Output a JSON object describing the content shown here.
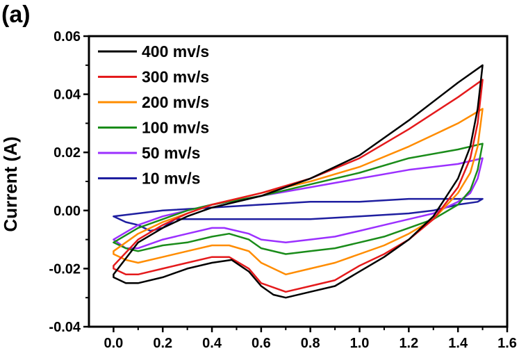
{
  "chart_data": {
    "type": "line",
    "panel_label": "(a)",
    "title": "",
    "xlabel": "",
    "ylabel": "Current (A)",
    "xlim": [
      -0.1,
      1.6
    ],
    "ylim": [
      -0.04,
      0.06
    ],
    "x_ticks": [
      0.0,
      0.2,
      0.4,
      0.6,
      0.8,
      1.0,
      1.2,
      1.4,
      1.6
    ],
    "x_tick_labels": [
      "0.0",
      "0.2",
      "0.4",
      "0.6",
      "0.8",
      "1.0",
      "1.2",
      "1.4",
      "1.6"
    ],
    "y_ticks": [
      -0.04,
      -0.02,
      0.0,
      0.02,
      0.04,
      0.06
    ],
    "y_tick_labels": [
      "-0.04",
      "-0.02",
      "0.00",
      "0.02",
      "0.04",
      "0.06"
    ],
    "grid": false,
    "legend_position": "top-left",
    "series": [
      {
        "name": "400 mv/s",
        "color": "#000000",
        "points": [
          [
            0,
            -0.022
          ],
          [
            0.1,
            -0.011
          ],
          [
            0.2,
            -0.006
          ],
          [
            0.3,
            -0.002
          ],
          [
            0.4,
            0.001
          ],
          [
            0.6,
            0.005
          ],
          [
            0.8,
            0.011
          ],
          [
            1.0,
            0.019
          ],
          [
            1.2,
            0.031
          ],
          [
            1.4,
            0.044
          ],
          [
            1.5,
            0.05
          ],
          [
            1.48,
            0.035
          ],
          [
            1.45,
            0.022
          ],
          [
            1.4,
            0.011
          ],
          [
            1.3,
            -0.002
          ],
          [
            1.2,
            -0.01
          ],
          [
            1.1,
            -0.016
          ],
          [
            1.0,
            -0.021
          ],
          [
            0.9,
            -0.026
          ],
          [
            0.8,
            -0.028
          ],
          [
            0.7,
            -0.03
          ],
          [
            0.65,
            -0.029
          ],
          [
            0.6,
            -0.026
          ],
          [
            0.55,
            -0.021
          ],
          [
            0.48,
            -0.017
          ],
          [
            0.4,
            -0.018
          ],
          [
            0.3,
            -0.02
          ],
          [
            0.2,
            -0.023
          ],
          [
            0.1,
            -0.025
          ],
          [
            0.05,
            -0.025
          ],
          [
            0,
            -0.023
          ]
        ]
      },
      {
        "name": "300 mv/s",
        "color": "#e41a1c",
        "points": [
          [
            0,
            -0.019
          ],
          [
            0.1,
            -0.01
          ],
          [
            0.2,
            -0.005
          ],
          [
            0.3,
            -0.001
          ],
          [
            0.4,
            0.002
          ],
          [
            0.6,
            0.006
          ],
          [
            0.8,
            0.011
          ],
          [
            1.0,
            0.018
          ],
          [
            1.2,
            0.028
          ],
          [
            1.4,
            0.039
          ],
          [
            1.5,
            0.045
          ],
          [
            1.48,
            0.03
          ],
          [
            1.45,
            0.018
          ],
          [
            1.4,
            0.008
          ],
          [
            1.3,
            -0.003
          ],
          [
            1.2,
            -0.01
          ],
          [
            1.1,
            -0.015
          ],
          [
            1.0,
            -0.019
          ],
          [
            0.9,
            -0.024
          ],
          [
            0.8,
            -0.026
          ],
          [
            0.7,
            -0.028
          ],
          [
            0.6,
            -0.025
          ],
          [
            0.55,
            -0.02
          ],
          [
            0.47,
            -0.016
          ],
          [
            0.4,
            -0.016
          ],
          [
            0.3,
            -0.018
          ],
          [
            0.2,
            -0.02
          ],
          [
            0.1,
            -0.022
          ],
          [
            0.05,
            -0.022
          ],
          [
            0,
            -0.02
          ]
        ]
      },
      {
        "name": "200 mv/s",
        "color": "#ff8c00",
        "points": [
          [
            0,
            -0.014
          ],
          [
            0.1,
            -0.008
          ],
          [
            0.2,
            -0.004
          ],
          [
            0.3,
            -0.001
          ],
          [
            0.4,
            0.002
          ],
          [
            0.6,
            0.006
          ],
          [
            0.8,
            0.01
          ],
          [
            1.0,
            0.015
          ],
          [
            1.2,
            0.022
          ],
          [
            1.4,
            0.03
          ],
          [
            1.5,
            0.035
          ],
          [
            1.48,
            0.022
          ],
          [
            1.45,
            0.013
          ],
          [
            1.4,
            0.006
          ],
          [
            1.3,
            -0.003
          ],
          [
            1.2,
            -0.008
          ],
          [
            1.1,
            -0.012
          ],
          [
            1.0,
            -0.015
          ],
          [
            0.9,
            -0.018
          ],
          [
            0.8,
            -0.02
          ],
          [
            0.7,
            -0.022
          ],
          [
            0.6,
            -0.018
          ],
          [
            0.55,
            -0.014
          ],
          [
            0.47,
            -0.012
          ],
          [
            0.4,
            -0.012
          ],
          [
            0.3,
            -0.014
          ],
          [
            0.2,
            -0.016
          ],
          [
            0.1,
            -0.018
          ],
          [
            0.05,
            -0.017
          ],
          [
            0,
            -0.015
          ]
        ]
      },
      {
        "name": "100 mv/s",
        "color": "#1a8c1a",
        "points": [
          [
            0,
            -0.011
          ],
          [
            0.1,
            -0.006
          ],
          [
            0.2,
            -0.003
          ],
          [
            0.3,
            0.0
          ],
          [
            0.4,
            0.002
          ],
          [
            0.6,
            0.005
          ],
          [
            0.8,
            0.009
          ],
          [
            1.0,
            0.013
          ],
          [
            1.2,
            0.018
          ],
          [
            1.4,
            0.021
          ],
          [
            1.5,
            0.023
          ],
          [
            1.48,
            0.014
          ],
          [
            1.45,
            0.007
          ],
          [
            1.4,
            0.002
          ],
          [
            1.3,
            -0.003
          ],
          [
            1.2,
            -0.006
          ],
          [
            1.1,
            -0.009
          ],
          [
            1.0,
            -0.011
          ],
          [
            0.9,
            -0.013
          ],
          [
            0.8,
            -0.014
          ],
          [
            0.7,
            -0.015
          ],
          [
            0.6,
            -0.013
          ],
          [
            0.55,
            -0.01
          ],
          [
            0.47,
            -0.008
          ],
          [
            0.4,
            -0.009
          ],
          [
            0.3,
            -0.011
          ],
          [
            0.2,
            -0.012
          ],
          [
            0.1,
            -0.014
          ],
          [
            0.05,
            -0.013
          ],
          [
            0,
            -0.011
          ]
        ]
      },
      {
        "name": "50 mv/s",
        "color": "#9b30ff",
        "points": [
          [
            0,
            -0.01
          ],
          [
            0.1,
            -0.005
          ],
          [
            0.2,
            -0.002
          ],
          [
            0.3,
            0.0
          ],
          [
            0.4,
            0.002
          ],
          [
            0.6,
            0.005
          ],
          [
            0.8,
            0.008
          ],
          [
            1.0,
            0.011
          ],
          [
            1.2,
            0.014
          ],
          [
            1.4,
            0.016
          ],
          [
            1.5,
            0.018
          ],
          [
            1.48,
            0.011
          ],
          [
            1.45,
            0.006
          ],
          [
            1.4,
            0.003
          ],
          [
            1.3,
            -0.001
          ],
          [
            1.2,
            -0.003
          ],
          [
            1.1,
            -0.005
          ],
          [
            1.0,
            -0.007
          ],
          [
            0.9,
            -0.009
          ],
          [
            0.8,
            -0.01
          ],
          [
            0.7,
            -0.011
          ],
          [
            0.6,
            -0.01
          ],
          [
            0.55,
            -0.008
          ],
          [
            0.45,
            -0.006
          ],
          [
            0.4,
            -0.006
          ],
          [
            0.3,
            -0.008
          ],
          [
            0.2,
            -0.01
          ],
          [
            0.1,
            -0.013
          ],
          [
            0.05,
            -0.013
          ],
          [
            0,
            -0.01
          ]
        ]
      },
      {
        "name": "10 mv/s",
        "color": "#1f1fa0",
        "points": [
          [
            0,
            -0.002
          ],
          [
            0.2,
            0.0
          ],
          [
            0.4,
            0.001
          ],
          [
            0.6,
            0.002
          ],
          [
            0.8,
            0.003
          ],
          [
            1.0,
            0.003
          ],
          [
            1.2,
            0.004
          ],
          [
            1.4,
            0.004
          ],
          [
            1.5,
            0.004
          ],
          [
            1.48,
            0.003
          ],
          [
            1.4,
            0.002
          ],
          [
            1.3,
            0.0
          ],
          [
            1.2,
            -0.001
          ],
          [
            1.0,
            -0.002
          ],
          [
            0.8,
            -0.003
          ],
          [
            0.7,
            -0.003
          ],
          [
            0.5,
            -0.003
          ],
          [
            0.4,
            -0.003
          ],
          [
            0.3,
            -0.003
          ],
          [
            0.25,
            -0.003
          ],
          [
            0.2,
            -0.006
          ],
          [
            0.15,
            -0.007
          ],
          [
            0.1,
            -0.005
          ],
          [
            0.05,
            -0.004
          ],
          [
            0,
            -0.002
          ]
        ]
      }
    ]
  }
}
